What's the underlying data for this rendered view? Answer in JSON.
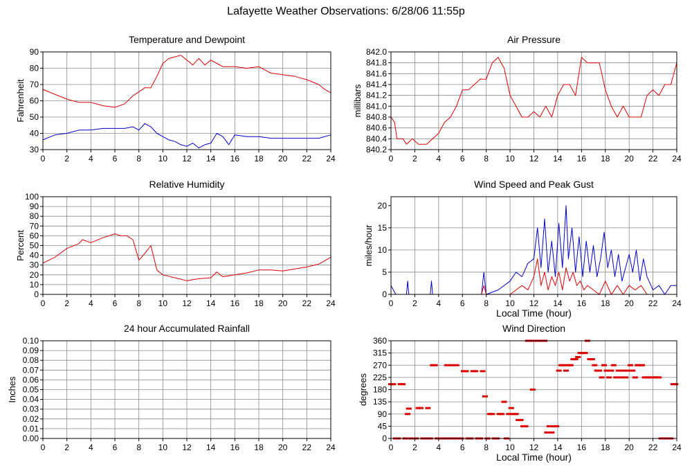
{
  "title": "Lafayette Weather Observations: 6/28/06 11:55p",
  "colors": {
    "red": "#dd0000",
    "blue": "#0000cc",
    "grid": "#888888",
    "axis": "#000000"
  },
  "chart_data": [
    {
      "id": "temperature",
      "type": "line",
      "title": "Temperature and Dewpoint",
      "xlabel": "",
      "ylabel": "Fahrenheit",
      "xlim": [
        0,
        24
      ],
      "ylim": [
        30,
        90
      ],
      "xticks": [
        0,
        2,
        4,
        6,
        8,
        10,
        12,
        14,
        16,
        18,
        20,
        22,
        24
      ],
      "yticks": [
        30,
        40,
        50,
        60,
        70,
        80,
        90
      ],
      "ytick_labels": [
        "30",
        "40",
        "50",
        "60",
        "70",
        "80",
        "90"
      ],
      "grid": true,
      "series": [
        {
          "color": "#dd0000",
          "x": [
            0,
            1,
            2,
            3,
            4,
            5,
            6,
            6.8,
            7.5,
            8.5,
            9,
            9.5,
            10,
            10.5,
            11,
            11.5,
            12,
            12.5,
            13,
            13.5,
            14,
            14.5,
            15,
            16,
            17,
            18,
            19,
            20,
            21,
            22,
            23,
            23.5,
            24
          ],
          "y": [
            67,
            64,
            61,
            59,
            59,
            57,
            56,
            58,
            63,
            68,
            68,
            75,
            83,
            86,
            87,
            88,
            85,
            82,
            86,
            82,
            85,
            83,
            81,
            81,
            80,
            81,
            77,
            76,
            75,
            73,
            70,
            67,
            65
          ]
        },
        {
          "color": "#0000cc",
          "x": [
            0,
            1,
            2,
            3,
            4,
            5,
            6,
            6.8,
            7.5,
            8,
            8.5,
            9,
            9.5,
            10,
            10.5,
            11,
            11.5,
            12,
            12.5,
            13,
            13.5,
            14,
            14.5,
            15,
            15.5,
            16,
            17,
            18,
            19,
            20,
            21,
            22,
            23,
            24
          ],
          "y": [
            36,
            39,
            40,
            42,
            42,
            43,
            43,
            43,
            44,
            42,
            46,
            44,
            40,
            38,
            36,
            35,
            33,
            32,
            34,
            31,
            33,
            34,
            40,
            38,
            33,
            39,
            38,
            38,
            37,
            37,
            37,
            37,
            37,
            39
          ]
        }
      ]
    },
    {
      "id": "pressure",
      "type": "line",
      "title": "Air Pressure",
      "xlabel": "",
      "ylabel": "millibars",
      "xlim": [
        0,
        24
      ],
      "ylim": [
        840.2,
        842.0
      ],
      "xticks": [
        0,
        2,
        4,
        6,
        8,
        10,
        12,
        14,
        16,
        18,
        20,
        22,
        24
      ],
      "yticks": [
        840.2,
        840.4,
        840.6,
        840.8,
        841.0,
        841.2,
        841.4,
        841.6,
        841.8,
        842.0
      ],
      "ytick_labels": [
        "840.2",
        "840.4",
        "840.6",
        "840.8",
        "841.0",
        "841.2",
        "841.4",
        "841.6",
        "841.8",
        "842.0"
      ],
      "grid": true,
      "series": [
        {
          "color": "#dd0000",
          "x": [
            0,
            0.3,
            0.5,
            1,
            1.3,
            1.8,
            2.3,
            3,
            3.5,
            4,
            4.5,
            5,
            5.5,
            6,
            6.5,
            7,
            7.5,
            8,
            8.5,
            9,
            9.5,
            10,
            10.5,
            11,
            11.5,
            12,
            12.5,
            13,
            13.5,
            14,
            14.5,
            15,
            15.5,
            16,
            16.5,
            17,
            17.5,
            18,
            18.5,
            19,
            19.5,
            20,
            20.5,
            21,
            21.5,
            22,
            22.5,
            23,
            23.5,
            24
          ],
          "y": [
            840.8,
            840.7,
            840.4,
            840.4,
            840.3,
            840.4,
            840.3,
            840.3,
            840.4,
            840.5,
            840.7,
            840.8,
            841.0,
            841.3,
            841.3,
            841.4,
            841.5,
            841.5,
            841.8,
            841.9,
            841.7,
            841.2,
            841.0,
            840.8,
            840.8,
            840.9,
            840.8,
            841.0,
            840.8,
            841.2,
            841.4,
            841.4,
            841.2,
            841.9,
            841.8,
            841.8,
            841.8,
            841.3,
            841.0,
            840.8,
            841.0,
            840.8,
            840.8,
            840.8,
            841.2,
            841.3,
            841.2,
            841.4,
            841.4,
            841.8
          ]
        }
      ]
    },
    {
      "id": "humidity",
      "type": "line",
      "title": "Relative Humidity",
      "xlabel": "",
      "ylabel": "Percent",
      "xlim": [
        0,
        24
      ],
      "ylim": [
        0,
        100
      ],
      "xticks": [
        0,
        2,
        4,
        6,
        8,
        10,
        12,
        14,
        16,
        18,
        20,
        22,
        24
      ],
      "yticks": [
        0,
        10,
        20,
        30,
        40,
        50,
        60,
        70,
        80,
        90,
        100
      ],
      "ytick_labels": [
        "0",
        "10",
        "20",
        "30",
        "40",
        "50",
        "60",
        "70",
        "80",
        "90",
        "100"
      ],
      "grid": true,
      "series": [
        {
          "color": "#dd0000",
          "x": [
            0,
            1,
            2,
            3,
            3.3,
            4,
            5,
            6,
            6.5,
            7,
            7.5,
            8,
            8.5,
            9,
            9.5,
            10,
            11,
            12,
            13,
            14,
            14.5,
            15,
            16,
            17,
            18,
            19,
            20,
            21,
            22,
            23,
            24
          ],
          "y": [
            32,
            38,
            47,
            52,
            56,
            53,
            58,
            62,
            60,
            60,
            56,
            35,
            42,
            50,
            25,
            20,
            17,
            14,
            16,
            17,
            23,
            18,
            20,
            22,
            25,
            25,
            24,
            26,
            28,
            31,
            38
          ]
        }
      ]
    },
    {
      "id": "wind-speed",
      "type": "line",
      "title": "Wind Speed and Peak Gust",
      "xlabel": "Local Time (hour)",
      "ylabel": "miles/hour",
      "xlim": [
        0,
        24
      ],
      "ylim": [
        0,
        22
      ],
      "xticks": [
        0,
        2,
        4,
        6,
        8,
        10,
        12,
        14,
        16,
        18,
        20,
        22,
        24
      ],
      "yticks": [
        0,
        5,
        10,
        15,
        20
      ],
      "ytick_labels": [
        "0",
        "5",
        "10",
        "15",
        "20"
      ],
      "grid": true,
      "series": [
        {
          "color": "#0000cc",
          "x": [
            0,
            0.2,
            0.4,
            1.3,
            1.4,
            1.5,
            2,
            3.3,
            3.4,
            3.5,
            4,
            5,
            6,
            7.6,
            7.8,
            8,
            9,
            10,
            10.5,
            11,
            11.5,
            12,
            12.3,
            12.6,
            12.9,
            13.2,
            13.5,
            13.8,
            14.1,
            14.4,
            14.7,
            14.9,
            15.2,
            15.5,
            15.8,
            16.1,
            16.4,
            16.7,
            17,
            17.3,
            17.6,
            17.9,
            18.2,
            18.5,
            18.8,
            19.1,
            19.4,
            19.7,
            20,
            20.3,
            20.6,
            20.9,
            21.2,
            21.5,
            22,
            22.5,
            23,
            23.5,
            24
          ],
          "y": [
            2,
            1,
            0,
            0,
            3,
            0,
            0,
            0,
            3,
            0,
            0,
            0,
            0,
            0,
            5,
            0,
            1,
            3,
            5,
            4,
            7,
            8,
            15,
            6,
            17,
            5,
            12,
            4,
            16,
            6,
            20,
            8,
            15,
            5,
            13,
            4,
            12,
            5,
            11,
            4,
            8,
            14,
            6,
            10,
            4,
            9,
            3,
            6,
            9,
            5,
            10,
            3,
            8,
            4,
            1,
            2,
            0,
            2,
            2
          ]
        },
        {
          "color": "#dd0000",
          "x": [
            0,
            7.6,
            7.8,
            8,
            10,
            10.5,
            11,
            11.5,
            12,
            12.3,
            12.6,
            12.9,
            13.2,
            13.5,
            13.8,
            14.1,
            14.4,
            14.7,
            15,
            15.3,
            15.6,
            15.9,
            16.2,
            16.5,
            17,
            17.5,
            18,
            18.5,
            19,
            19.5,
            20,
            20.5,
            21,
            21.5,
            22,
            24
          ],
          "y": [
            0,
            0,
            2,
            0,
            0,
            1,
            2,
            1,
            4,
            8,
            2,
            5,
            1,
            4,
            2,
            5,
            1,
            6,
            3,
            5,
            2,
            3,
            1,
            2,
            1,
            0,
            3,
            0,
            2,
            0,
            2,
            1,
            2,
            0,
            0,
            0
          ]
        }
      ]
    },
    {
      "id": "rainfall",
      "type": "line",
      "title": "24 hour Accumulated Rainfall",
      "xlabel": "",
      "ylabel": "Inches",
      "xlim": [
        0,
        24
      ],
      "ylim": [
        0,
        0.1
      ],
      "xticks": [
        0,
        2,
        4,
        6,
        8,
        10,
        12,
        14,
        16,
        18,
        20,
        22,
        24
      ],
      "yticks": [
        0,
        0.01,
        0.02,
        0.03,
        0.04,
        0.05,
        0.06,
        0.07,
        0.08,
        0.09,
        0.1
      ],
      "ytick_labels": [
        "0.00",
        "0.01",
        "0.02",
        "0.03",
        "0.04",
        "0.05",
        "0.06",
        "0.07",
        "0.08",
        "0.09",
        "0.10"
      ],
      "grid": true,
      "series": [
        {
          "color": "#dd0000",
          "x": [
            0,
            24
          ],
          "y": [
            0,
            0
          ]
        }
      ]
    },
    {
      "id": "wind-direction",
      "type": "scatter",
      "title": "Wind Direction",
      "xlabel": "Local Time (hour)",
      "ylabel": "degrees",
      "xlim": [
        0,
        24
      ],
      "ylim": [
        0,
        360
      ],
      "xticks": [
        0,
        2,
        4,
        6,
        8,
        10,
        12,
        14,
        16,
        18,
        20,
        22,
        24
      ],
      "yticks": [
        0,
        45,
        90,
        135,
        180,
        225,
        270,
        315,
        360
      ],
      "ytick_labels": [
        "0",
        "45",
        "90",
        "135",
        "180",
        "225",
        "270",
        "315",
        "360"
      ],
      "grid": true,
      "series": [
        {
          "color": "#dd0000",
          "x": [
            0,
            0.2,
            0.4,
            0.6,
            0.8,
            1,
            1.2,
            1.4,
            1.5,
            1.7,
            1.9,
            2.1,
            2.3,
            2.5,
            2.7,
            2.9,
            3.1,
            3.3,
            3.5,
            3.7,
            3.9,
            4.1,
            4.3,
            4.5,
            4.7,
            4.9,
            5.1,
            5.3,
            5.5,
            5.7,
            5.9,
            6.1,
            6.3,
            6.5,
            6.7,
            6.9,
            7.1,
            7.3,
            7.5,
            7.7,
            7.9,
            8.1,
            8.3,
            8.5,
            8.7,
            8.9,
            9.1,
            9.3,
            9.5,
            9.7,
            9.9,
            10.1,
            10.3,
            10.5,
            10.7,
            10.9,
            11.1,
            11.3,
            11.5,
            11.7,
            11.9,
            12.1,
            12.3,
            12.5,
            12.7,
            12.9,
            13.1,
            13.3,
            13.5,
            13.7,
            13.9,
            14.1,
            14.3,
            14.5,
            14.7,
            14.9,
            15.1,
            15.3,
            15.5,
            15.7,
            15.9,
            16.1,
            16.3,
            16.5,
            16.7,
            16.9,
            17.1,
            17.3,
            17.5,
            17.7,
            17.9,
            18.1,
            18.3,
            18.5,
            18.7,
            18.9,
            19.1,
            19.3,
            19.5,
            19.7,
            19.9,
            20.1,
            20.3,
            20.5,
            20.7,
            20.9,
            21.1,
            21.3,
            21.5,
            21.7,
            21.9,
            22.1,
            22.3,
            22.5,
            22.7,
            22.9,
            23.1,
            23.3,
            23.5,
            23.7,
            23.9
          ],
          "y": [
            200,
            200,
            0,
            0,
            200,
            200,
            0,
            90,
            110,
            0,
            0,
            0,
            112,
            112,
            0,
            0,
            112,
            0,
            270,
            270,
            0,
            0,
            0,
            0,
            270,
            0,
            270,
            0,
            270,
            0,
            0,
            248,
            248,
            0,
            0,
            248,
            248,
            0,
            0,
            248,
            155,
            0,
            90,
            90,
            0,
            0,
            90,
            90,
            135,
            0,
            90,
            112,
            90,
            90,
            68,
            68,
            45,
            45,
            360,
            360,
            180,
            360,
            360,
            360,
            360,
            360,
            22,
            45,
            22,
            45,
            45,
            250,
            270,
            270,
            250,
            270,
            270,
            292,
            292,
            300,
            315,
            315,
            315,
            360,
            292,
            292,
            270,
            250,
            250,
            225,
            270,
            250,
            225,
            250,
            270,
            225,
            250,
            225,
            250,
            225,
            250,
            270,
            250,
            225,
            270,
            270,
            270,
            225,
            225,
            225,
            225,
            225,
            225,
            225,
            0,
            0,
            0,
            0,
            0,
            200,
            200
          ]
        }
      ]
    }
  ]
}
